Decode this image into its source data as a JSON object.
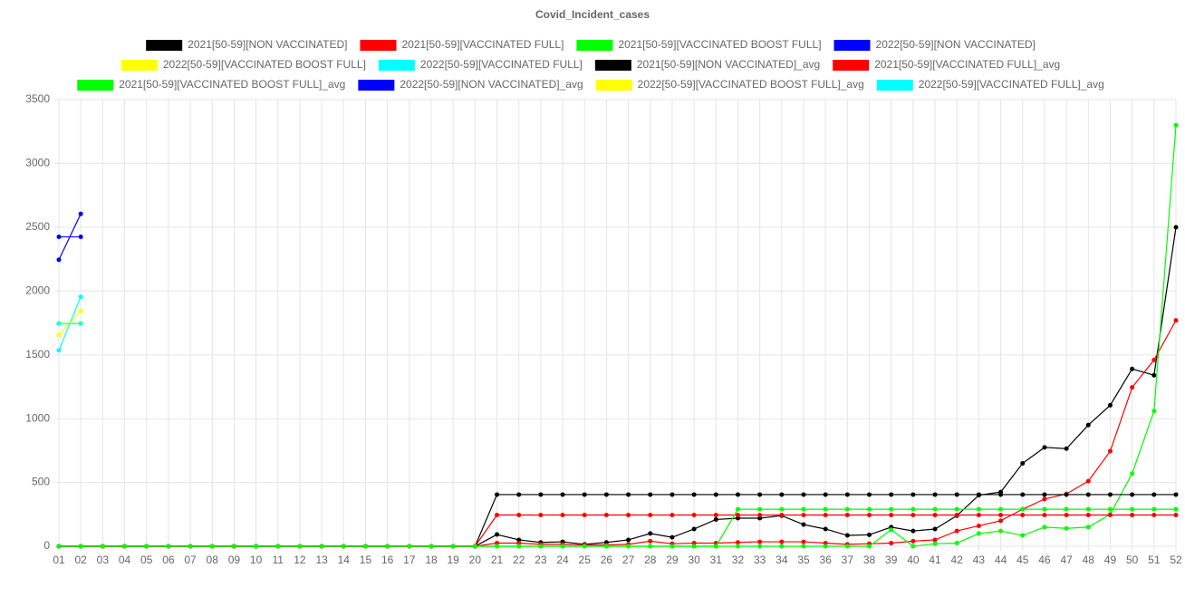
{
  "chart_data": {
    "type": "line",
    "title": "Covid_Incident_cases",
    "categories": [
      "01",
      "02",
      "03",
      "04",
      "05",
      "06",
      "07",
      "08",
      "09",
      "10",
      "11",
      "12",
      "13",
      "14",
      "15",
      "16",
      "17",
      "18",
      "19",
      "20",
      "21",
      "22",
      "23",
      "24",
      "25",
      "26",
      "27",
      "28",
      "29",
      "30",
      "31",
      "32",
      "33",
      "34",
      "35",
      "36",
      "37",
      "38",
      "39",
      "40",
      "41",
      "42",
      "43",
      "44",
      "45",
      "46",
      "47",
      "48",
      "49",
      "50",
      "51",
      "52"
    ],
    "ylim": [
      0,
      3500
    ],
    "yticks": [
      0,
      500,
      1000,
      1500,
      2000,
      2500,
      3000,
      3500
    ],
    "grid": true,
    "legend": "top",
    "series": [
      {
        "name": "2021[50-59][NON VACCINATED]",
        "color": "#000000",
        "values": [
          0,
          0,
          0,
          0,
          0,
          0,
          0,
          0,
          0,
          0,
          0,
          0,
          0,
          0,
          0,
          0,
          0,
          0,
          0,
          0,
          92,
          50,
          30,
          35,
          15,
          30,
          50,
          100,
          70,
          135,
          210,
          220,
          220,
          240,
          170,
          135,
          85,
          90,
          150,
          120,
          135,
          240,
          400,
          425,
          650,
          775,
          765,
          950,
          1105,
          1390,
          1340,
          2500
        ]
      },
      {
        "name": "2021[50-59][VACCINATED FULL]",
        "color": "#ff0000",
        "values": [
          0,
          0,
          0,
          0,
          0,
          0,
          0,
          0,
          0,
          0,
          0,
          0,
          0,
          0,
          0,
          0,
          0,
          0,
          0,
          0,
          25,
          25,
          15,
          15,
          10,
          10,
          15,
          40,
          20,
          25,
          25,
          30,
          35,
          35,
          35,
          25,
          15,
          20,
          25,
          40,
          50,
          120,
          160,
          200,
          290,
          370,
          410,
          510,
          745,
          1245,
          1460,
          1770
        ]
      },
      {
        "name": "2021[50-59][VACCINATED BOOST FULL]",
        "color": "#00ff00",
        "values": [
          0,
          0,
          0,
          0,
          0,
          0,
          0,
          0,
          0,
          0,
          0,
          0,
          0,
          0,
          0,
          0,
          0,
          0,
          0,
          0,
          0,
          0,
          0,
          0,
          0,
          0,
          0,
          0,
          0,
          0,
          0,
          0,
          0,
          0,
          0,
          0,
          0,
          0,
          130,
          0,
          20,
          25,
          100,
          120,
          85,
          150,
          140,
          150,
          250,
          570,
          1060,
          3300
        ]
      },
      {
        "name": "2022[50-59][NON VACCINATED]",
        "color": "#0000ff",
        "values": [
          2245,
          2605,
          null,
          null,
          null,
          null,
          null,
          null,
          null,
          null,
          null,
          null,
          null,
          null,
          null,
          null,
          null,
          null,
          null,
          null,
          null,
          null,
          null,
          null,
          null,
          null,
          null,
          null,
          null,
          null,
          null,
          null,
          null,
          null,
          null,
          null,
          null,
          null,
          null,
          null,
          null,
          null,
          null,
          null,
          null,
          null,
          null,
          null,
          null,
          null,
          null,
          null
        ]
      },
      {
        "name": "2022[50-59][VACCINATED BOOST FULL]",
        "color": "#ffff00",
        "values": [
          1655,
          1845,
          null,
          null,
          null,
          null,
          null,
          null,
          null,
          null,
          null,
          null,
          null,
          null,
          null,
          null,
          null,
          null,
          null,
          null,
          null,
          null,
          null,
          null,
          null,
          null,
          null,
          null,
          null,
          null,
          null,
          null,
          null,
          null,
          null,
          null,
          null,
          null,
          null,
          null,
          null,
          null,
          null,
          null,
          null,
          null,
          null,
          null,
          null,
          null,
          null,
          null
        ]
      },
      {
        "name": "2022[50-59][VACCINATED FULL]",
        "color": "#00ffff",
        "values": [
          1535,
          1955,
          null,
          null,
          null,
          null,
          null,
          null,
          null,
          null,
          null,
          null,
          null,
          null,
          null,
          null,
          null,
          null,
          null,
          null,
          null,
          null,
          null,
          null,
          null,
          null,
          null,
          null,
          null,
          null,
          null,
          null,
          null,
          null,
          null,
          null,
          null,
          null,
          null,
          null,
          null,
          null,
          null,
          null,
          null,
          null,
          null,
          null,
          null,
          null,
          null,
          null
        ]
      },
      {
        "name": "2021[50-59][NON VACCINATED]_avg",
        "color": "#000000",
        "values": [
          0,
          0,
          0,
          0,
          0,
          0,
          0,
          0,
          0,
          0,
          0,
          0,
          0,
          0,
          0,
          0,
          0,
          0,
          0,
          0,
          405,
          405,
          405,
          405,
          405,
          405,
          405,
          405,
          405,
          405,
          405,
          405,
          405,
          405,
          405,
          405,
          405,
          405,
          405,
          405,
          405,
          405,
          405,
          405,
          405,
          405,
          405,
          405,
          405,
          405,
          405,
          405
        ]
      },
      {
        "name": "2021[50-59][VACCINATED FULL]_avg",
        "color": "#ff0000",
        "values": [
          0,
          0,
          0,
          0,
          0,
          0,
          0,
          0,
          0,
          0,
          0,
          0,
          0,
          0,
          0,
          0,
          0,
          0,
          0,
          0,
          245,
          245,
          245,
          245,
          245,
          245,
          245,
          245,
          245,
          245,
          245,
          245,
          245,
          245,
          245,
          245,
          245,
          245,
          245,
          245,
          245,
          245,
          245,
          245,
          245,
          245,
          245,
          245,
          245,
          245,
          245,
          245
        ]
      },
      {
        "name": "2021[50-59][VACCINATED BOOST FULL]_avg",
        "color": "#00ff00",
        "values": [
          0,
          0,
          0,
          0,
          0,
          0,
          0,
          0,
          0,
          0,
          0,
          0,
          0,
          0,
          0,
          0,
          0,
          0,
          0,
          0,
          0,
          0,
          0,
          0,
          0,
          0,
          0,
          0,
          0,
          0,
          0,
          290,
          290,
          290,
          290,
          290,
          290,
          290,
          290,
          290,
          290,
          290,
          290,
          290,
          290,
          290,
          290,
          290,
          290,
          290,
          290,
          290
        ]
      },
      {
        "name": "2022[50-59][NON VACCINATED]_avg",
        "color": "#0000ff",
        "values": [
          2425,
          2425,
          null,
          null,
          null,
          null,
          null,
          null,
          null,
          null,
          null,
          null,
          null,
          null,
          null,
          null,
          null,
          null,
          null,
          null,
          null,
          null,
          null,
          null,
          null,
          null,
          null,
          null,
          null,
          null,
          null,
          null,
          null,
          null,
          null,
          null,
          null,
          null,
          null,
          null,
          null,
          null,
          null,
          null,
          null,
          null,
          null,
          null,
          null,
          null,
          null,
          null
        ]
      },
      {
        "name": "2022[50-59][VACCINATED BOOST FULL]_avg",
        "color": "#ffff00",
        "values": [
          1750,
          1750,
          null,
          null,
          null,
          null,
          null,
          null,
          null,
          null,
          null,
          null,
          null,
          null,
          null,
          null,
          null,
          null,
          null,
          null,
          null,
          null,
          null,
          null,
          null,
          null,
          null,
          null,
          null,
          null,
          null,
          null,
          null,
          null,
          null,
          null,
          null,
          null,
          null,
          null,
          null,
          null,
          null,
          null,
          null,
          null,
          null,
          null,
          null,
          null,
          null,
          null
        ]
      },
      {
        "name": "2022[50-59][VACCINATED FULL]_avg",
        "color": "#00ffff",
        "values": [
          1745,
          1745,
          null,
          null,
          null,
          null,
          null,
          null,
          null,
          null,
          null,
          null,
          null,
          null,
          null,
          null,
          null,
          null,
          null,
          null,
          null,
          null,
          null,
          null,
          null,
          null,
          null,
          null,
          null,
          null,
          null,
          null,
          null,
          null,
          null,
          null,
          null,
          null,
          null,
          null,
          null,
          null,
          null,
          null,
          null,
          null,
          null,
          null,
          null,
          null,
          null,
          null
        ]
      }
    ]
  }
}
